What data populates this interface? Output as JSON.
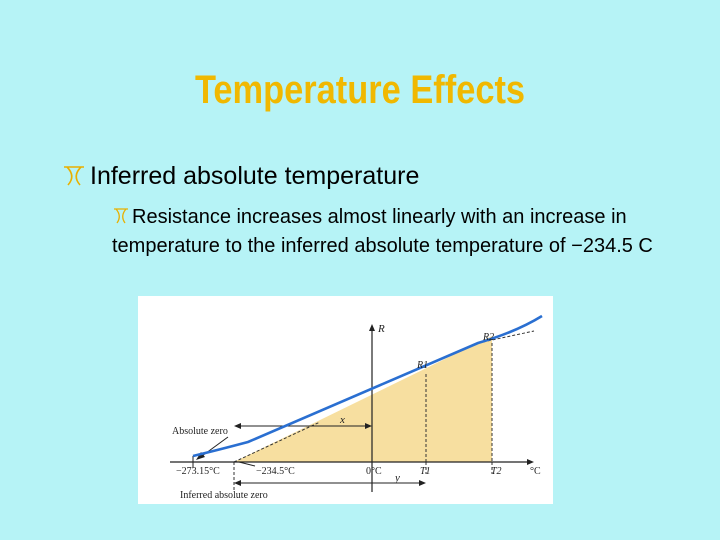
{
  "slide": {
    "title": "Temperature Effects",
    "bullet_level1": "Inferred absolute temperature",
    "bullet_level2": "Resistance increases almost linearly with an increase in temperature to the inferred absolute temperature of −234.5 C"
  },
  "figure": {
    "labels": {
      "r_axis": "R",
      "r1": "R1",
      "r2": "R2",
      "x": "x",
      "y": "y",
      "absolute_zero": "Absolute zero",
      "tick_abs_zero": "−273.15°C",
      "tick_inferred": "−234.5°C",
      "tick_zero": "0°C",
      "t1": "T1",
      "t2": "T2",
      "unit": "°C",
      "inferred_absolute_zero": "Inferred absolute zero"
    }
  },
  "colors": {
    "title": "#f0b800",
    "background": "#b6f3f6",
    "curve": "#2a6fd1",
    "shade": "#f7dfa0"
  }
}
